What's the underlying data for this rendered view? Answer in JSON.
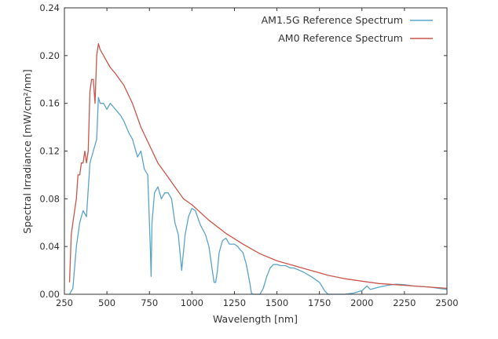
{
  "chart_data": {
    "type": "line",
    "xlabel": "Wavelength [nm]",
    "ylabel": "Spectral Irradiance [mW/cm²/nm]",
    "xlim": [
      250,
      2500
    ],
    "ylim": [
      0,
      0.24
    ],
    "xticks": [
      250,
      500,
      750,
      1000,
      1250,
      1500,
      1750,
      2000,
      2250,
      2500
    ],
    "yticks": [
      0.0,
      0.04,
      0.08,
      0.12,
      0.16,
      0.2,
      0.24
    ],
    "xtick_labels": [
      "250",
      "500",
      "750",
      "1000",
      "1250",
      "1500",
      "1750",
      "2000",
      "2250",
      "2500"
    ],
    "ytick_labels": [
      "0.00",
      "0.04",
      "0.08",
      "0.12",
      "0.16",
      "0.20",
      "0.24"
    ],
    "grid": false,
    "legend_position": "top-right",
    "series": [
      {
        "name": "AM1.5G Reference Spectrum",
        "color": "#5ba3c9",
        "x": [
          280,
          300,
          320,
          340,
          360,
          380,
          400,
          420,
          440,
          450,
          460,
          480,
          500,
          520,
          550,
          580,
          600,
          630,
          650,
          680,
          700,
          720,
          740,
          755,
          760,
          765,
          780,
          800,
          820,
          840,
          860,
          880,
          900,
          920,
          940,
          960,
          980,
          1000,
          1020,
          1050,
          1080,
          1100,
          1120,
          1130,
          1140,
          1150,
          1160,
          1180,
          1200,
          1220,
          1250,
          1270,
          1280,
          1300,
          1320,
          1340,
          1350,
          1360,
          1380,
          1400,
          1420,
          1440,
          1460,
          1480,
          1500,
          1520,
          1550,
          1580,
          1600,
          1650,
          1700,
          1750,
          1780,
          1800,
          1820,
          1850,
          1880,
          1900,
          1950,
          2000,
          2030,
          2050,
          2100,
          2150,
          2200,
          2250,
          2300,
          2350,
          2400,
          2450,
          2500
        ],
        "values": [
          0.0,
          0.005,
          0.04,
          0.06,
          0.07,
          0.065,
          0.11,
          0.12,
          0.13,
          0.165,
          0.16,
          0.16,
          0.155,
          0.16,
          0.155,
          0.15,
          0.145,
          0.135,
          0.13,
          0.115,
          0.12,
          0.105,
          0.1,
          0.04,
          0.015,
          0.06,
          0.085,
          0.09,
          0.08,
          0.085,
          0.085,
          0.08,
          0.06,
          0.05,
          0.02,
          0.05,
          0.065,
          0.072,
          0.07,
          0.058,
          0.05,
          0.04,
          0.02,
          0.01,
          0.01,
          0.02,
          0.035,
          0.045,
          0.047,
          0.042,
          0.042,
          0.04,
          0.038,
          0.035,
          0.025,
          0.01,
          0.001,
          0.0,
          0.0,
          0.0,
          0.005,
          0.015,
          0.022,
          0.025,
          0.025,
          0.024,
          0.024,
          0.022,
          0.022,
          0.019,
          0.015,
          0.01,
          0.003,
          0.0,
          0.0,
          0.0,
          0.0,
          0.0,
          0.001,
          0.003,
          0.007,
          0.004,
          0.006,
          0.0075,
          0.0085,
          0.008,
          0.007,
          0.0065,
          0.006,
          0.005,
          0.004
        ]
      },
      {
        "name": "AM0 Reference Spectrum",
        "color": "#c9564a",
        "x": [
          280,
          290,
          300,
          310,
          320,
          330,
          340,
          350,
          360,
          370,
          380,
          390,
          400,
          410,
          420,
          430,
          440,
          450,
          460,
          480,
          500,
          520,
          550,
          600,
          650,
          700,
          750,
          800,
          850,
          900,
          950,
          1000,
          1100,
          1200,
          1300,
          1400,
          1500,
          1600,
          1700,
          1800,
          1900,
          2000,
          2100,
          2200,
          2300,
          2400,
          2500
        ],
        "values": [
          0.01,
          0.05,
          0.06,
          0.07,
          0.08,
          0.1,
          0.1,
          0.11,
          0.11,
          0.12,
          0.11,
          0.12,
          0.17,
          0.18,
          0.18,
          0.16,
          0.2,
          0.21,
          0.205,
          0.2,
          0.195,
          0.19,
          0.185,
          0.175,
          0.16,
          0.14,
          0.125,
          0.11,
          0.1,
          0.09,
          0.08,
          0.075,
          0.062,
          0.051,
          0.042,
          0.034,
          0.028,
          0.024,
          0.02,
          0.016,
          0.013,
          0.011,
          0.009,
          0.008,
          0.007,
          0.006,
          0.005
        ]
      }
    ]
  }
}
